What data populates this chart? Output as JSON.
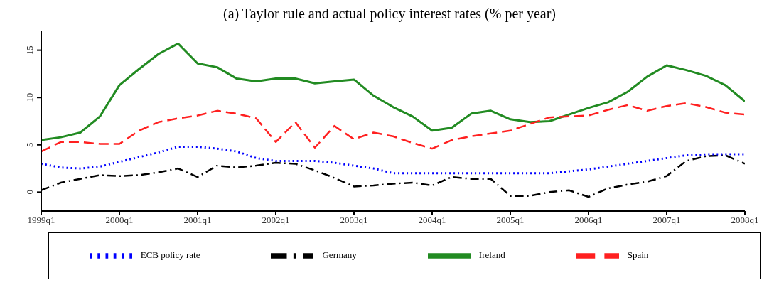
{
  "chart_data": {
    "type": "line",
    "title": "(a) Taylor rule and actual policy interest rates (% per year)",
    "categories": [
      "1999q1",
      null,
      null,
      null,
      "2000q1",
      null,
      null,
      null,
      "2001q1",
      null,
      null,
      null,
      "2002q1",
      null,
      null,
      null,
      "2003q1",
      null,
      null,
      null,
      "2004q1",
      null,
      null,
      null,
      "2005q1",
      null,
      null,
      null,
      "2006q1",
      null,
      null,
      null,
      "2007q1",
      null,
      null,
      null,
      "2008q1"
    ],
    "series": [
      {
        "name": "Ireland",
        "color": "#228b22",
        "line_style": "solid",
        "values": [
          5.5,
          5.8,
          6.3,
          8.0,
          11.3,
          13.0,
          14.6,
          15.7,
          13.6,
          13.2,
          12.0,
          11.7,
          12.0,
          12.0,
          11.5,
          11.7,
          11.9,
          10.2,
          9.0,
          8.0,
          6.5,
          6.8,
          8.3,
          8.6,
          7.7,
          7.4,
          7.5,
          8.2,
          8.9,
          9.5,
          10.6,
          12.2,
          13.4,
          12.9,
          12.3,
          11.3,
          9.6
        ]
      },
      {
        "name": "Spain",
        "color": "#ff2020",
        "line_style": "dashed",
        "values": [
          4.3,
          5.3,
          5.3,
          5.1,
          5.1,
          6.5,
          7.4,
          7.8,
          8.1,
          8.6,
          8.3,
          7.8,
          5.3,
          7.4,
          4.7,
          7.0,
          5.6,
          6.3,
          5.9,
          5.2,
          4.6,
          5.5,
          5.9,
          6.2,
          6.5,
          7.2,
          7.9,
          8.0,
          8.1,
          8.7,
          9.2,
          8.6,
          9.1,
          9.4,
          9.0,
          8.4,
          8.2
        ]
      },
      {
        "name": "Germany",
        "color": "#000000",
        "line_style": "dashdot",
        "values": [
          0.2,
          1.0,
          1.4,
          1.8,
          1.7,
          1.8,
          2.1,
          2.5,
          1.6,
          2.8,
          2.6,
          2.8,
          3.1,
          3.0,
          2.3,
          1.5,
          0.6,
          0.7,
          0.9,
          1.0,
          0.7,
          1.6,
          1.4,
          1.4,
          -0.4,
          -0.4,
          0.0,
          0.2,
          -0.5,
          0.4,
          0.8,
          1.1,
          1.7,
          3.3,
          3.8,
          3.9,
          3.0
        ]
      },
      {
        "name": "ECB policy rate",
        "color": "#0000ff",
        "line_style": "dotted",
        "values": [
          3.0,
          2.6,
          2.5,
          2.7,
          3.2,
          3.7,
          4.2,
          4.8,
          4.8,
          4.6,
          4.3,
          3.6,
          3.3,
          3.3,
          3.3,
          3.1,
          2.8,
          2.5,
          2.0,
          2.0,
          2.0,
          2.0,
          2.0,
          2.0,
          2.0,
          2.0,
          2.0,
          2.2,
          2.4,
          2.7,
          3.0,
          3.3,
          3.6,
          3.9,
          4.0,
          4.0,
          4.0
        ]
      }
    ],
    "ylim": [
      -2,
      17
    ],
    "yticks": [
      0,
      5,
      10,
      15
    ],
    "legend": "bottom",
    "marker": "none"
  }
}
